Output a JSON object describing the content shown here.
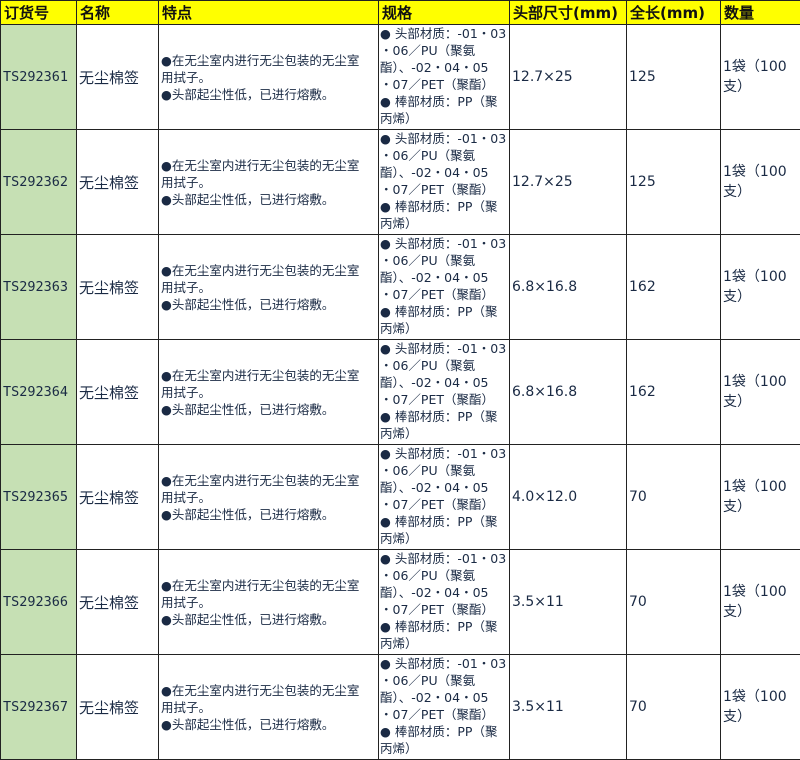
{
  "headers": [
    "订货号",
    "名称",
    "特点",
    "规格",
    "头部尺寸(mm)",
    "全长(mm)",
    "数量"
  ],
  "colors": {
    "header_bg": "#ffff00",
    "code_bg": "#c6e0b4"
  },
  "rows": [
    {
      "code": "TS292361",
      "name": "无尘棉签",
      "features": [
        "●在无尘室内进行无尘包装的无尘室",
        "用拭子。",
        "●头部起尘性低，已进行熔敷。"
      ],
      "spec": [
        "● 头部材质：-01・03",
        "・06／PU（聚氨",
        "酯）、-02・04・05",
        "・07／PET（聚酯）",
        "● 棒部材质：PP（聚",
        "丙烯）"
      ],
      "head_size": "12.7×25",
      "length": "125",
      "qty": [
        "1袋（100",
        "支）"
      ]
    },
    {
      "code": "TS292362",
      "name": "无尘棉签",
      "features": [
        "●在无尘室内进行无尘包装的无尘室",
        "用拭子。",
        "●头部起尘性低，已进行熔敷。"
      ],
      "spec": [
        "● 头部材质：-01・03",
        "・06／PU（聚氨",
        "酯）、-02・04・05",
        "・07／PET（聚酯）",
        "● 棒部材质：PP（聚",
        "丙烯）"
      ],
      "head_size": "12.7×25",
      "length": "125",
      "qty": [
        "1袋（100",
        "支）"
      ]
    },
    {
      "code": "TS292363",
      "name": "无尘棉签",
      "features": [
        "●在无尘室内进行无尘包装的无尘室",
        "用拭子。",
        "●头部起尘性低，已进行熔敷。"
      ],
      "spec": [
        "● 头部材质：-01・03",
        "・06／PU（聚氨",
        "酯）、-02・04・05",
        "・07／PET（聚酯）",
        "● 棒部材质：PP（聚",
        "丙烯）"
      ],
      "head_size": "6.8×16.8",
      "length": "162",
      "qty": [
        "1袋（100",
        "支）"
      ]
    },
    {
      "code": "TS292364",
      "name": "无尘棉签",
      "features": [
        "●在无尘室内进行无尘包装的无尘室",
        "用拭子。",
        "●头部起尘性低，已进行熔敷。"
      ],
      "spec": [
        "● 头部材质：-01・03",
        "・06／PU（聚氨",
        "酯）、-02・04・05",
        "・07／PET（聚酯）",
        "● 棒部材质：PP（聚",
        "丙烯）"
      ],
      "head_size": "6.8×16.8",
      "length": "162",
      "qty": [
        "1袋（100",
        "支）"
      ]
    },
    {
      "code": "TS292365",
      "name": "无尘棉签",
      "features": [
        "●在无尘室内进行无尘包装的无尘室",
        "用拭子。",
        "●头部起尘性低，已进行熔敷。"
      ],
      "spec": [
        "● 头部材质：-01・03",
        "・06／PU（聚氨",
        "酯）、-02・04・05",
        "・07／PET（聚酯）",
        "● 棒部材质：PP（聚",
        "丙烯）"
      ],
      "head_size": "4.0×12.0",
      "length": "70",
      "qty": [
        "1袋（100",
        "支）"
      ]
    },
    {
      "code": "TS292366",
      "name": "无尘棉签",
      "features": [
        "●在无尘室内进行无尘包装的无尘室",
        "用拭子。",
        "●头部起尘性低，已进行熔敷。"
      ],
      "spec": [
        "● 头部材质：-01・03",
        "・06／PU（聚氨",
        "酯）、-02・04・05",
        "・07／PET（聚酯）",
        "● 棒部材质：PP（聚",
        "丙烯）"
      ],
      "head_size": "3.5×11",
      "length": "70",
      "qty": [
        "1袋（100",
        "支）"
      ]
    },
    {
      "code": "TS292367",
      "name": "无尘棉签",
      "features": [
        "●在无尘室内进行无尘包装的无尘室",
        "用拭子。",
        "●头部起尘性低，已进行熔敷。"
      ],
      "spec": [
        "● 头部材质：-01・03",
        "・06／PU（聚氨",
        "酯）、-02・04・05",
        "・07／PET（聚酯）",
        "● 棒部材质：PP（聚",
        "丙烯）"
      ],
      "head_size": "3.5×11",
      "length": "70",
      "qty": [
        "1袋（100",
        "支）"
      ]
    }
  ]
}
